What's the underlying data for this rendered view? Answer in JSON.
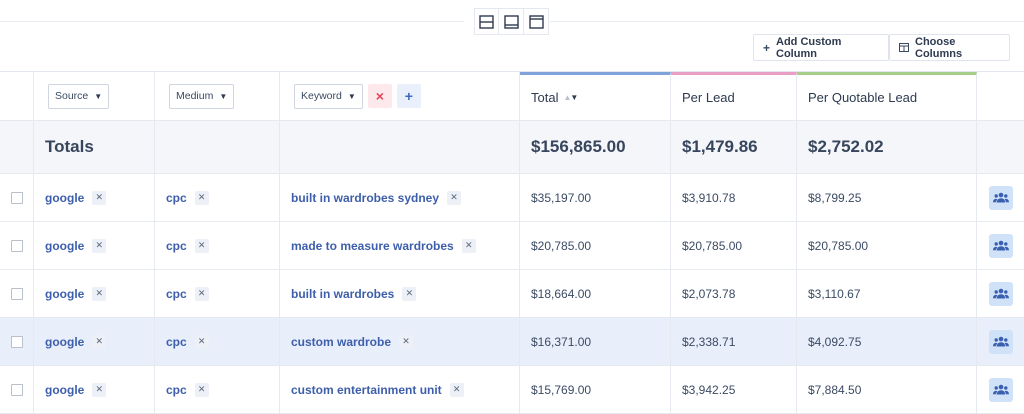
{
  "layout_toggles": [
    "split-top-icon",
    "split-bottom-icon",
    "header-panel-icon"
  ],
  "toolbar": {
    "add_column_label": "Add Custom Column",
    "choose_columns_label": "Choose Columns"
  },
  "columns": {
    "source": "Source",
    "medium": "Medium",
    "keyword": "Keyword",
    "total": "Total",
    "per_lead": "Per Lead",
    "per_quotable_lead": "Per Quotable Lead"
  },
  "sort": {
    "column": "total",
    "direction": "descending"
  },
  "totals": {
    "label": "Totals",
    "total": "$156,865.00",
    "per_lead": "$1,479.86",
    "per_quotable_lead": "$2,752.02"
  },
  "rows": [
    {
      "source": "google",
      "medium": "cpc",
      "keyword": "built in wardrobes sydney",
      "total": "$35,197.00",
      "per_lead": "$3,910.78",
      "per_quotable_lead": "$8,799.25"
    },
    {
      "source": "google",
      "medium": "cpc",
      "keyword": "made to measure wardrobes",
      "total": "$20,785.00",
      "per_lead": "$20,785.00",
      "per_quotable_lead": "$20,785.00"
    },
    {
      "source": "google",
      "medium": "cpc",
      "keyword": "built in wardrobes",
      "total": "$18,664.00",
      "per_lead": "$2,073.78",
      "per_quotable_lead": "$3,110.67"
    },
    {
      "source": "google",
      "medium": "cpc",
      "keyword": "custom wardrobe",
      "total": "$16,371.00",
      "per_lead": "$2,338.71",
      "per_quotable_lead": "$4,092.75"
    },
    {
      "source": "google",
      "medium": "cpc",
      "keyword": "custom entertainment unit",
      "total": "$15,769.00",
      "per_lead": "$3,942.25",
      "per_quotable_lead": "$7,884.50"
    }
  ],
  "highlighted_row": 3,
  "colors": {
    "total_accent": "#7ea2d9",
    "per_lead_accent": "#e99fc3",
    "per_quotable_accent": "#a5cf8a",
    "link": "#3d5fab"
  }
}
